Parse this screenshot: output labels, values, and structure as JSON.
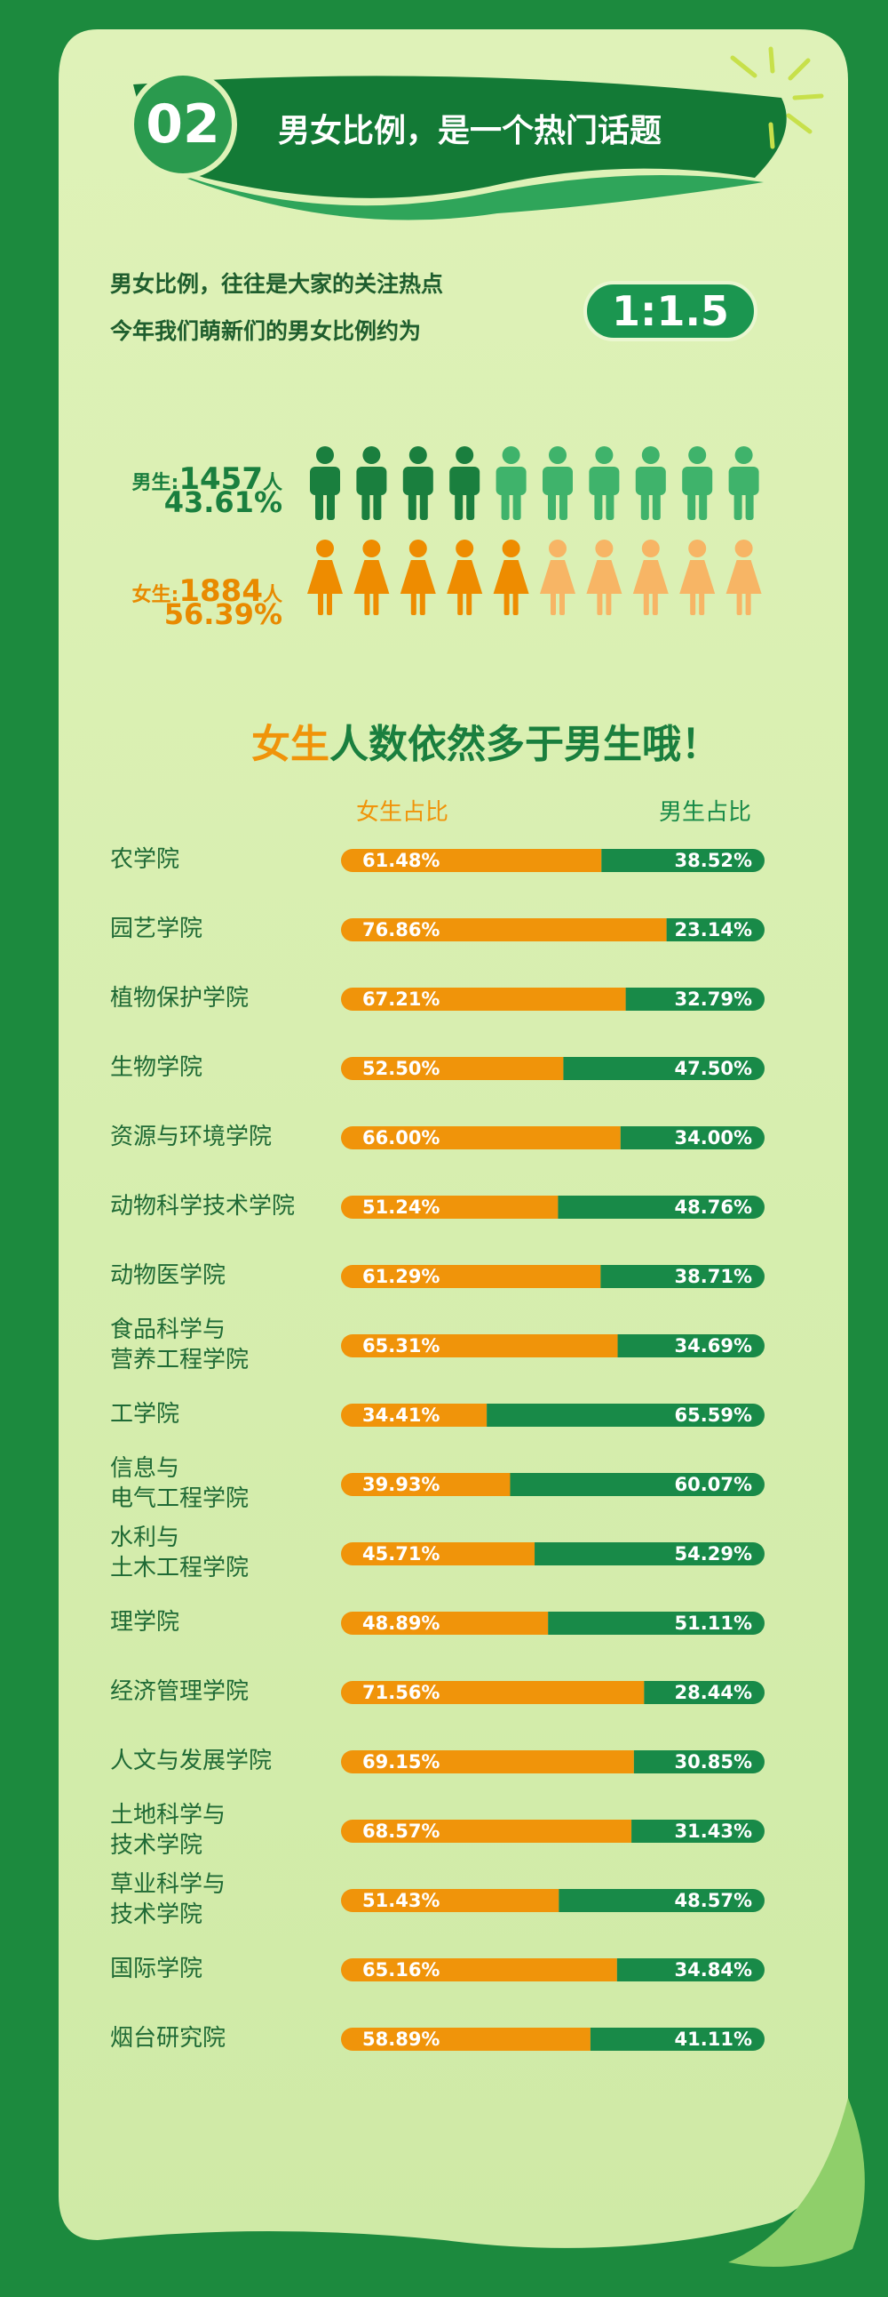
{
  "header": {
    "number": "02",
    "title": "男女比例，是一个热门话题"
  },
  "intro": {
    "lines": [
      "男女比例，往往是大家的关注热点",
      "今年我们萌新们的男女比例约为"
    ],
    "ratio": "1:1.5"
  },
  "male": {
    "label": "男生:",
    "count": "1457",
    "unit": "人",
    "percent": "43.61%"
  },
  "female": {
    "label": "女生:",
    "count": "1884",
    "unit": "人",
    "percent": "56.39%"
  },
  "headline": {
    "highlight": "女生",
    "rest": "人数依然多于男生哦！"
  },
  "chart_data": {
    "type": "stacked-bar",
    "categories": [
      "农学院",
      "园艺学院",
      "植物保护学院",
      "生物学院",
      "资源与环境学院",
      "动物科学技术学院",
      "动物医学院",
      "食品科学与\n营养工程学院",
      "工学院",
      "信息与\n电气工程学院",
      "水利与\n土木工程学院",
      "理学院",
      "经济管理学院",
      "人文与发展学院",
      "土地科学与\n技术学院",
      "草业科学与\n技术学院",
      "国际学院",
      "烟台研究院"
    ],
    "xlim": [
      0,
      100
    ],
    "series": [
      {
        "name": "女生占比",
        "color": "#f0940a",
        "values": [
          61.48,
          76.86,
          67.21,
          52.5,
          66.0,
          51.24,
          61.29,
          65.31,
          34.41,
          39.93,
          45.71,
          48.89,
          71.56,
          69.15,
          68.57,
          51.43,
          65.16,
          58.89
        ],
        "value_labels": [
          "61.48%",
          "76.86%",
          "67.21%",
          "52.50%",
          "66.00%",
          "51.24%",
          "61.29%",
          "65.31%",
          "34.41%",
          "39.93%",
          "45.71%",
          "48.89%",
          "71.56%",
          "69.15%",
          "68.57%",
          "51.43%",
          "65.16%",
          "58.89%"
        ]
      },
      {
        "name": "男生占比",
        "color": "#188a48",
        "values": [
          38.52,
          23.14,
          32.79,
          47.5,
          34.0,
          48.76,
          38.71,
          34.69,
          65.59,
          60.07,
          54.29,
          51.11,
          28.44,
          30.85,
          31.43,
          48.57,
          34.84,
          41.11
        ],
        "value_labels": [
          "38.52%",
          "23.14%",
          "32.79%",
          "47.50%",
          "34.00%",
          "48.76%",
          "38.71%",
          "34.69%",
          "65.59%",
          "60.07%",
          "54.29%",
          "51.11%",
          "28.44%",
          "30.85%",
          "31.43%",
          "48.57%",
          "34.84%",
          "41.11%"
        ]
      }
    ]
  }
}
